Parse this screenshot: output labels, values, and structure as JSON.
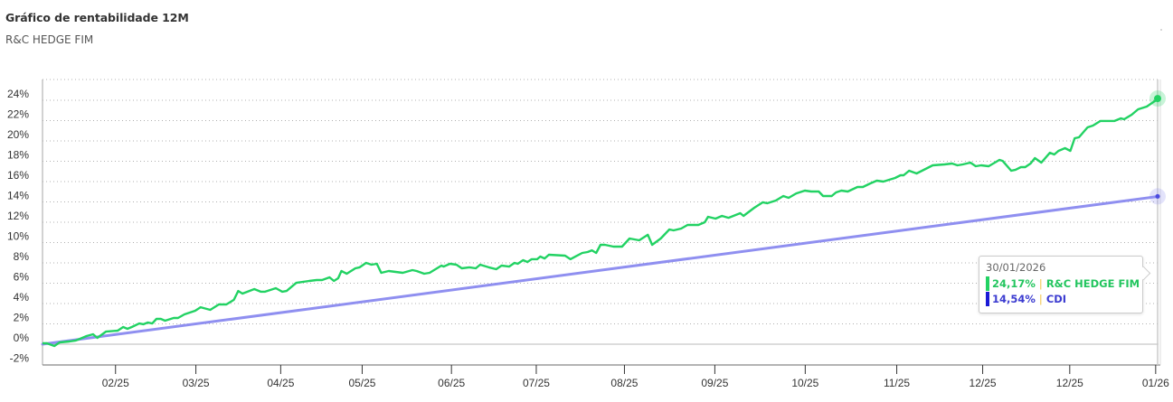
{
  "header": {
    "title": "Gráfico de rentabilidade 12M",
    "subtitle": "R&C HEDGE FIM"
  },
  "colors": {
    "fund": "#22d263",
    "cdi": "#8f8ff0",
    "cdi_marker": "#4a4ae0",
    "tooltip_cdi_bar": "#1a1ad6",
    "grid": "#b0b0b0",
    "axis": "#999999",
    "zero_line": "#c8c8c8"
  },
  "tooltip": {
    "date": "30/01/2026",
    "rows": [
      {
        "value": "24,17%",
        "separator": "|",
        "label": "R&C HEDGE FIM",
        "color": "#22c55e",
        "bar_color": "#22d263"
      },
      {
        "value": "14,54%",
        "separator": "|",
        "label": "CDI",
        "color": "#3b3bd0",
        "bar_color": "#1a1ad6"
      }
    ]
  },
  "chart_data": {
    "type": "line",
    "title": "Gráfico de rentabilidade 12M",
    "subtitle": "R&C HEDGE FIM",
    "xlabel": "",
    "ylabel": "",
    "ylim": [
      -2,
      25
    ],
    "yticks": [
      -2,
      0,
      2,
      4,
      6,
      8,
      10,
      12,
      14,
      16,
      18,
      20,
      22,
      24
    ],
    "ytick_labels": [
      "-2%",
      "0%",
      "2%",
      "4%",
      "6%",
      "8%",
      "10%",
      "12%",
      "14%",
      "16%",
      "18%",
      "20%",
      "22%",
      "24%"
    ],
    "xticks": [
      {
        "t": 0.063,
        "label": "02/25"
      },
      {
        "t": 0.135,
        "label": "03/25"
      },
      {
        "t": 0.211,
        "label": "04/25"
      },
      {
        "t": 0.284,
        "label": "05/25"
      },
      {
        "t": 0.364,
        "label": "06/25"
      },
      {
        "t": 0.44,
        "label": "07/25"
      },
      {
        "t": 0.519,
        "label": "08/25"
      },
      {
        "t": 0.6,
        "label": "09/25"
      },
      {
        "t": 0.681,
        "label": "10/25"
      },
      {
        "t": 0.763,
        "label": "11/25"
      },
      {
        "t": 0.84,
        "label": "12/25"
      },
      {
        "t": 0.918,
        "label": "12/25"
      },
      {
        "t": 0.995,
        "label": "01/26"
      }
    ],
    "grid": true,
    "legend": "none",
    "x_range": [
      "31/01/2025",
      "30/01/2026"
    ],
    "series": [
      {
        "name": "R&C HEDGE FIM",
        "color": "#22d263",
        "final_value": 24.17,
        "points": [
          [
            0.0,
            0.09
          ],
          [
            0.004,
            0.09
          ],
          [
            0.011,
            -0.18
          ],
          [
            0.016,
            0.18
          ],
          [
            0.025,
            0.27
          ],
          [
            0.031,
            0.36
          ],
          [
            0.037,
            0.62
          ],
          [
            0.041,
            0.8
          ],
          [
            0.047,
            0.98
          ],
          [
            0.051,
            0.62
          ],
          [
            0.059,
            1.24
          ],
          [
            0.07,
            1.33
          ],
          [
            0.075,
            1.69
          ],
          [
            0.079,
            1.51
          ],
          [
            0.083,
            1.69
          ],
          [
            0.09,
            2.04
          ],
          [
            0.094,
            1.96
          ],
          [
            0.098,
            2.13
          ],
          [
            0.102,
            2.04
          ],
          [
            0.106,
            2.49
          ],
          [
            0.11,
            2.49
          ],
          [
            0.114,
            2.31
          ],
          [
            0.122,
            2.58
          ],
          [
            0.126,
            2.58
          ],
          [
            0.132,
            2.93
          ],
          [
            0.142,
            3.29
          ],
          [
            0.147,
            3.64
          ],
          [
            0.156,
            3.38
          ],
          [
            0.164,
            3.91
          ],
          [
            0.171,
            3.91
          ],
          [
            0.178,
            4.36
          ],
          [
            0.182,
            5.24
          ],
          [
            0.186,
            4.98
          ],
          [
            0.197,
            5.42
          ],
          [
            0.203,
            5.16
          ],
          [
            0.207,
            5.16
          ],
          [
            0.217,
            5.51
          ],
          [
            0.223,
            5.16
          ],
          [
            0.227,
            5.24
          ],
          [
            0.236,
            6.04
          ],
          [
            0.248,
            6.22
          ],
          [
            0.255,
            6.31
          ],
          [
            0.26,
            6.31
          ],
          [
            0.267,
            6.58
          ],
          [
            0.271,
            6.22
          ],
          [
            0.275,
            6.49
          ],
          [
            0.278,
            7.2
          ],
          [
            0.283,
            6.93
          ],
          [
            0.291,
            7.47
          ],
          [
            0.295,
            7.56
          ],
          [
            0.301,
            8.0
          ],
          [
            0.306,
            7.82
          ],
          [
            0.311,
            7.91
          ],
          [
            0.315,
            7.02
          ],
          [
            0.322,
            7.2
          ],
          [
            0.335,
            7.02
          ],
          [
            0.344,
            7.29
          ],
          [
            0.348,
            7.2
          ],
          [
            0.355,
            6.93
          ],
          [
            0.36,
            7.02
          ],
          [
            0.371,
            7.73
          ],
          [
            0.373,
            7.64
          ],
          [
            0.379,
            7.91
          ],
          [
            0.385,
            7.82
          ],
          [
            0.39,
            7.47
          ],
          [
            0.397,
            7.56
          ],
          [
            0.403,
            7.47
          ],
          [
            0.407,
            7.82
          ],
          [
            0.415,
            7.56
          ],
          [
            0.422,
            7.38
          ],
          [
            0.427,
            7.73
          ],
          [
            0.434,
            7.64
          ],
          [
            0.439,
            8.0
          ],
          [
            0.442,
            7.91
          ],
          [
            0.447,
            8.27
          ],
          [
            0.451,
            8.09
          ],
          [
            0.455,
            8.36
          ],
          [
            0.46,
            8.36
          ],
          [
            0.463,
            8.62
          ],
          [
            0.467,
            8.44
          ],
          [
            0.471,
            8.8
          ],
          [
            0.486,
            8.71
          ],
          [
            0.491,
            8.36
          ],
          [
            0.502,
            8.98
          ],
          [
            0.507,
            9.07
          ],
          [
            0.511,
            9.24
          ],
          [
            0.515,
            8.98
          ],
          [
            0.519,
            9.78
          ],
          [
            0.523,
            9.78
          ],
          [
            0.531,
            9.6
          ],
          [
            0.539,
            9.6
          ],
          [
            0.546,
            10.4
          ],
          [
            0.555,
            10.22
          ],
          [
            0.563,
            10.76
          ],
          [
            0.567,
            9.78
          ],
          [
            0.575,
            10.4
          ],
          [
            0.583,
            11.29
          ],
          [
            0.587,
            11.2
          ],
          [
            0.594,
            11.38
          ],
          [
            0.6,
            11.73
          ],
          [
            0.61,
            11.73
          ],
          [
            0.616,
            12.0
          ],
          [
            0.619,
            12.53
          ],
          [
            0.626,
            12.36
          ],
          [
            0.632,
            12.62
          ],
          [
            0.638,
            12.44
          ],
          [
            0.649,
            12.89
          ],
          [
            0.652,
            12.62
          ],
          [
            0.662,
            13.42
          ],
          [
            0.67,
            13.96
          ],
          [
            0.674,
            13.87
          ],
          [
            0.682,
            14.13
          ],
          [
            0.689,
            14.58
          ],
          [
            0.694,
            14.4
          ],
          [
            0.701,
            14.84
          ],
          [
            0.709,
            15.11
          ],
          [
            0.715,
            15.02
          ],
          [
            0.722,
            15.02
          ],
          [
            0.726,
            14.58
          ],
          [
            0.734,
            14.58
          ],
          [
            0.738,
            14.93
          ],
          [
            0.743,
            15.11
          ],
          [
            0.749,
            15.02
          ],
          [
            0.758,
            15.47
          ],
          [
            0.763,
            15.47
          ],
          [
            0.77,
            15.82
          ],
          [
            0.776,
            16.09
          ],
          [
            0.782,
            16.0
          ],
          [
            0.793,
            16.36
          ],
          [
            0.798,
            16.62
          ],
          [
            0.801,
            16.62
          ],
          [
            0.806,
            17.07
          ],
          [
            0.813,
            16.8
          ],
          [
            0.823,
            17.33
          ],
          [
            0.828,
            17.6
          ],
          [
            0.839,
            17.69
          ],
          [
            0.846,
            17.78
          ],
          [
            0.851,
            17.6
          ],
          [
            0.856,
            17.69
          ],
          [
            0.863,
            17.87
          ],
          [
            0.868,
            17.51
          ],
          [
            0.873,
            17.6
          ],
          [
            0.88,
            17.51
          ],
          [
            0.89,
            18.13
          ],
          [
            0.893,
            18.04
          ],
          [
            0.901,
            17.07
          ],
          [
            0.905,
            17.16
          ],
          [
            0.91,
            17.42
          ],
          [
            0.914,
            17.42
          ],
          [
            0.919,
            17.78
          ],
          [
            0.923,
            18.31
          ],
          [
            0.929,
            17.87
          ],
          [
            0.937,
            18.84
          ],
          [
            0.941,
            18.67
          ],
          [
            0.945,
            19.02
          ],
          [
            0.951,
            19.29
          ],
          [
            0.956,
            19.02
          ],
          [
            0.96,
            20.27
          ],
          [
            0.964,
            20.36
          ],
          [
            0.972,
            21.33
          ],
          [
            0.977,
            21.51
          ],
          [
            0.984,
            21.96
          ],
          [
            0.997,
            21.96
          ],
          [
            1.003,
            22.22
          ],
          [
            1.006,
            22.13
          ],
          [
            1.013,
            22.58
          ],
          [
            1.019,
            23.11
          ],
          [
            1.027,
            23.38
          ],
          [
            1.038,
            24.17
          ]
        ]
      },
      {
        "name": "CDI",
        "color": "#8f8ff0",
        "final_value": 14.54,
        "points": [
          [
            0.0,
            0.0
          ],
          [
            1.0,
            14.54
          ]
        ]
      }
    ]
  }
}
